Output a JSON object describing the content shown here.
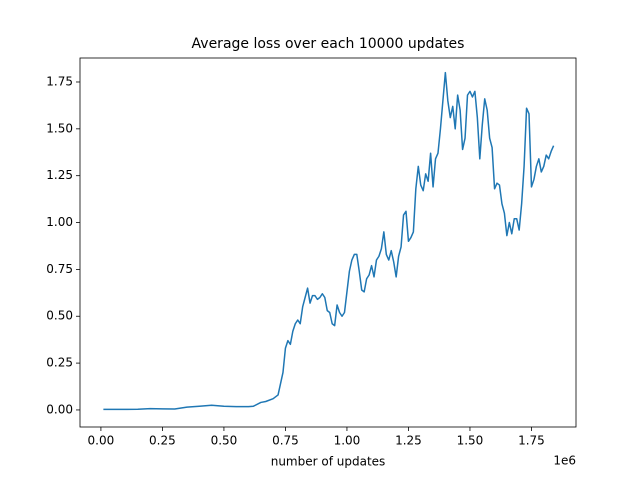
{
  "chart_data": {
    "type": "line",
    "title": "Average loss over each 10000 updates",
    "xlabel": "number of updates",
    "x_offset_label": "1e6",
    "color": "#1f77b4",
    "x": [
      0.01,
      0.05,
      0.1,
      0.15,
      0.2,
      0.25,
      0.3,
      0.35,
      0.4,
      0.45,
      0.5,
      0.55,
      0.6,
      0.62,
      0.65,
      0.67,
      0.7,
      0.72,
      0.74,
      0.75,
      0.76,
      0.77,
      0.78,
      0.79,
      0.8,
      0.81,
      0.82,
      0.83,
      0.84,
      0.85,
      0.86,
      0.87,
      0.88,
      0.89,
      0.9,
      0.91,
      0.92,
      0.93,
      0.94,
      0.95,
      0.96,
      0.97,
      0.98,
      0.99,
      1.0,
      1.01,
      1.02,
      1.03,
      1.04,
      1.05,
      1.06,
      1.07,
      1.08,
      1.09,
      1.1,
      1.11,
      1.12,
      1.13,
      1.14,
      1.15,
      1.16,
      1.17,
      1.18,
      1.19,
      1.2,
      1.21,
      1.22,
      1.23,
      1.24,
      1.25,
      1.26,
      1.27,
      1.28,
      1.29,
      1.3,
      1.31,
      1.32,
      1.33,
      1.34,
      1.35,
      1.36,
      1.37,
      1.38,
      1.39,
      1.4,
      1.41,
      1.42,
      1.43,
      1.44,
      1.45,
      1.46,
      1.47,
      1.48,
      1.49,
      1.5,
      1.51,
      1.52,
      1.53,
      1.54,
      1.55,
      1.56,
      1.57,
      1.58,
      1.59,
      1.6,
      1.61,
      1.62,
      1.63,
      1.64,
      1.65,
      1.66,
      1.67,
      1.68,
      1.69,
      1.7,
      1.71,
      1.72,
      1.73,
      1.74,
      1.75,
      1.76,
      1.77,
      1.78,
      1.79,
      1.8,
      1.81,
      1.82,
      1.83,
      1.84
    ],
    "values": [
      0.003,
      0.003,
      0.003,
      0.004,
      0.007,
      0.006,
      0.005,
      0.015,
      0.02,
      0.025,
      0.02,
      0.018,
      0.018,
      0.02,
      0.04,
      0.045,
      0.06,
      0.08,
      0.2,
      0.33,
      0.37,
      0.35,
      0.42,
      0.46,
      0.48,
      0.46,
      0.55,
      0.6,
      0.65,
      0.57,
      0.61,
      0.61,
      0.59,
      0.6,
      0.62,
      0.6,
      0.53,
      0.52,
      0.46,
      0.45,
      0.56,
      0.52,
      0.5,
      0.52,
      0.63,
      0.74,
      0.8,
      0.83,
      0.83,
      0.74,
      0.64,
      0.63,
      0.7,
      0.72,
      0.77,
      0.71,
      0.8,
      0.82,
      0.86,
      0.95,
      0.83,
      0.8,
      0.85,
      0.79,
      0.71,
      0.82,
      0.87,
      1.04,
      1.06,
      0.9,
      0.92,
      0.95,
      1.18,
      1.3,
      1.2,
      1.17,
      1.26,
      1.22,
      1.37,
      1.19,
      1.34,
      1.37,
      1.5,
      1.65,
      1.8,
      1.65,
      1.56,
      1.62,
      1.5,
      1.68,
      1.6,
      1.39,
      1.45,
      1.68,
      1.7,
      1.67,
      1.7,
      1.56,
      1.34,
      1.52,
      1.66,
      1.6,
      1.45,
      1.4,
      1.18,
      1.21,
      1.2,
      1.1,
      1.05,
      0.93,
      1.0,
      0.94,
      1.02,
      1.02,
      0.96,
      1.1,
      1.3,
      1.61,
      1.58,
      1.19,
      1.23,
      1.3,
      1.34,
      1.27,
      1.3,
      1.36,
      1.34,
      1.38,
      1.41
    ],
    "xlim": [
      -0.085,
      1.931
    ],
    "ylim": [
      -0.091,
      1.878
    ],
    "xticks": [
      {
        "value": 0,
        "label": "0.00"
      },
      {
        "value": 0.25,
        "label": "0.25"
      },
      {
        "value": 0.5,
        "label": "0.50"
      },
      {
        "value": 0.75,
        "label": "0.75"
      },
      {
        "value": 1,
        "label": "1.00"
      },
      {
        "value": 1.25,
        "label": "1.25"
      },
      {
        "value": 1.5,
        "label": "1.50"
      },
      {
        "value": 1.75,
        "label": "1.75"
      }
    ],
    "yticks": [
      {
        "value": 0,
        "label": "0.00"
      },
      {
        "value": 0.25,
        "label": "0.25"
      },
      {
        "value": 0.5,
        "label": "0.50"
      },
      {
        "value": 0.75,
        "label": "0.75"
      },
      {
        "value": 1,
        "label": "1.00"
      },
      {
        "value": 1.25,
        "label": "1.25"
      },
      {
        "value": 1.5,
        "label": "1.50"
      },
      {
        "value": 1.75,
        "label": "1.75"
      }
    ],
    "grid": false
  }
}
